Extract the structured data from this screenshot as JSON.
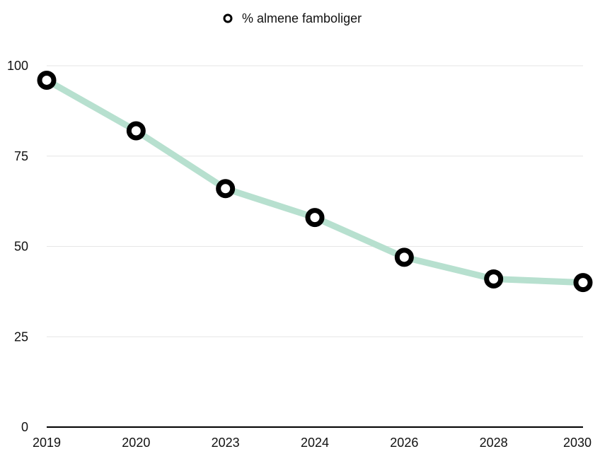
{
  "chart_data": {
    "type": "line",
    "categories": [
      "2019",
      "2020",
      "2023",
      "2024",
      "2026",
      "2028",
      "2030"
    ],
    "series": [
      {
        "name": "% almene famboliger",
        "values": [
          96,
          82,
          66,
          58,
          47,
          41,
          40
        ],
        "line_color": "#b7e0cf",
        "marker_color": "#000000"
      }
    ],
    "y_ticks": [
      "0",
      "25",
      "50",
      "75",
      "100"
    ],
    "ylim": [
      0,
      100
    ],
    "grid": true,
    "legend": "top-center",
    "title": "",
    "xlabel": "",
    "ylabel": ""
  }
}
